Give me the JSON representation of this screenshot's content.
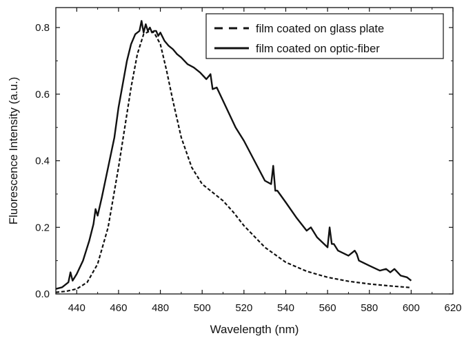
{
  "chart_data": {
    "type": "line",
    "title": "",
    "xlabel": "Wavelength (nm)",
    "ylabel": "Fluorescence Intensity (a.u.)",
    "xlim": [
      430,
      620
    ],
    "ylim": [
      0,
      0.86
    ],
    "xticks": [
      440,
      460,
      480,
      500,
      520,
      540,
      560,
      580,
      600,
      620
    ],
    "yticks": [
      0.0,
      0.2,
      0.4,
      0.6,
      0.8
    ],
    "ytick_labels": [
      "0.0",
      "0.2",
      "0.4",
      "0.6",
      "0.8"
    ],
    "grid": false,
    "legend_position": "top-right",
    "series": [
      {
        "name": "film coated on glass plate",
        "style": "dashed",
        "color": "#111111",
        "x": [
          430,
          435,
          440,
          445,
          450,
          455,
          460,
          463,
          466,
          469,
          472,
          475,
          477,
          480,
          483,
          486,
          490,
          495,
          500,
          505,
          510,
          515,
          520,
          530,
          540,
          550,
          560,
          570,
          580,
          590,
          600
        ],
        "y": [
          0.005,
          0.008,
          0.015,
          0.035,
          0.09,
          0.2,
          0.38,
          0.5,
          0.62,
          0.72,
          0.78,
          0.79,
          0.785,
          0.75,
          0.67,
          0.58,
          0.47,
          0.38,
          0.33,
          0.305,
          0.28,
          0.245,
          0.205,
          0.14,
          0.095,
          0.068,
          0.05,
          0.038,
          0.03,
          0.024,
          0.019
        ]
      },
      {
        "name": "film coated on optic-fiber",
        "style": "solid",
        "color": "#111111",
        "x": [
          430,
          433,
          436,
          437,
          438,
          440,
          443,
          446,
          448,
          449,
          450,
          452,
          455,
          458,
          460,
          462,
          464,
          466,
          468,
          470,
          471,
          472,
          473,
          474,
          475,
          476,
          477,
          478,
          479,
          480,
          482,
          484,
          486,
          488,
          490,
          493,
          496,
          499,
          502,
          504,
          505,
          507,
          510,
          513,
          516,
          520,
          525,
          530,
          533,
          534,
          535,
          536,
          540,
          545,
          550,
          552,
          555,
          560,
          561,
          562,
          563,
          565,
          570,
          573,
          574,
          575,
          580,
          585,
          588,
          590,
          592,
          595,
          598,
          600
        ],
        "y": [
          0.015,
          0.02,
          0.035,
          0.065,
          0.04,
          0.06,
          0.1,
          0.16,
          0.21,
          0.255,
          0.235,
          0.29,
          0.38,
          0.47,
          0.56,
          0.63,
          0.7,
          0.75,
          0.78,
          0.79,
          0.82,
          0.785,
          0.81,
          0.79,
          0.8,
          0.785,
          0.79,
          0.79,
          0.775,
          0.785,
          0.76,
          0.745,
          0.735,
          0.72,
          0.71,
          0.69,
          0.68,
          0.665,
          0.645,
          0.66,
          0.615,
          0.62,
          0.58,
          0.54,
          0.5,
          0.46,
          0.4,
          0.34,
          0.33,
          0.385,
          0.31,
          0.31,
          0.275,
          0.23,
          0.19,
          0.2,
          0.17,
          0.14,
          0.2,
          0.15,
          0.15,
          0.13,
          0.115,
          0.13,
          0.12,
          0.1,
          0.085,
          0.07,
          0.075,
          0.065,
          0.075,
          0.055,
          0.05,
          0.04
        ]
      }
    ]
  }
}
